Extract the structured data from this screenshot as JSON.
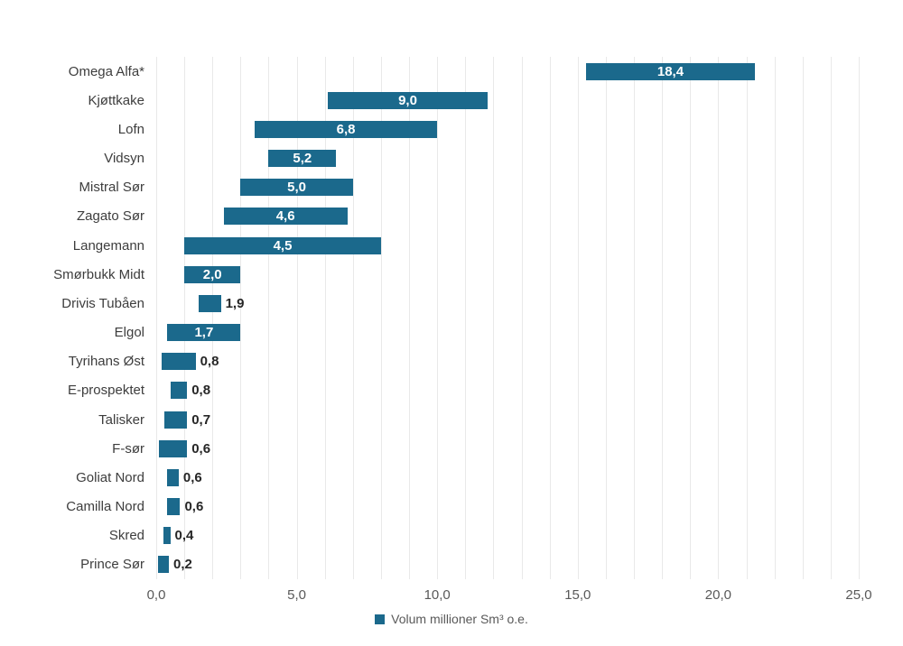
{
  "chart_data": {
    "type": "bar",
    "orientation": "horizontal-floating",
    "title": "",
    "xlabel": "",
    "ylabel": "",
    "x_axis": {
      "min": 0,
      "max": 25,
      "tick_step": 5,
      "gridline_step": 1,
      "tick_values": [
        0,
        5,
        10,
        15,
        20,
        25
      ],
      "tick_labels": [
        "0,0",
        "5,0",
        "10,0",
        "15,0",
        "20,0",
        "25,0"
      ]
    },
    "grid": "vertical-on",
    "legend_position": "bottom-center",
    "series_name": "Volum millioner Sm³ o.e.",
    "points": [
      {
        "category": "Omega Alfa*",
        "range": [
          15.3,
          21.3
        ],
        "value": 18.4,
        "label": "18,4",
        "label_inside": true
      },
      {
        "category": "Kjøttkake",
        "range": [
          6.1,
          11.8
        ],
        "value": 9.0,
        "label": "9,0",
        "label_inside": true
      },
      {
        "category": "Lofn",
        "range": [
          3.5,
          10.0
        ],
        "value": 6.8,
        "label": "6,8",
        "label_inside": true
      },
      {
        "category": "Vidsyn",
        "range": [
          4.0,
          6.4
        ],
        "value": 5.2,
        "label": "5,2",
        "label_inside": true
      },
      {
        "category": "Mistral Sør",
        "range": [
          3.0,
          7.0
        ],
        "value": 5.0,
        "label": "5,0",
        "label_inside": true
      },
      {
        "category": "Zagato Sør",
        "range": [
          2.4,
          6.8
        ],
        "value": 4.6,
        "label": "4,6",
        "label_inside": true
      },
      {
        "category": "Langemann",
        "range": [
          1.0,
          8.0
        ],
        "value": 4.5,
        "label": "4,5",
        "label_inside": true
      },
      {
        "category": "Smørbukk Midt",
        "range": [
          1.0,
          3.0
        ],
        "value": 2.0,
        "label": "2,0",
        "label_inside": true
      },
      {
        "category": "Drivis Tubåen",
        "range": [
          1.5,
          2.3
        ],
        "value": 1.9,
        "label": "1,9",
        "label_inside": false
      },
      {
        "category": "Elgol",
        "range": [
          0.4,
          3.0
        ],
        "value": 1.7,
        "label": "1,7",
        "label_inside": true
      },
      {
        "category": "Tyrihans Øst",
        "range": [
          0.2,
          1.4
        ],
        "value": 0.8,
        "label": "0,8",
        "label_inside": false
      },
      {
        "category": "E-prospektet",
        "range": [
          0.5,
          1.1
        ],
        "value": 0.8,
        "label": "0,8",
        "label_inside": false
      },
      {
        "category": "Talisker",
        "range": [
          0.3,
          1.1
        ],
        "value": 0.7,
        "label": "0,7",
        "label_inside": false
      },
      {
        "category": "F-sør",
        "range": [
          0.1,
          1.1
        ],
        "value": 0.6,
        "label": "0,6",
        "label_inside": false
      },
      {
        "category": "Goliat Nord",
        "range": [
          0.4,
          0.8
        ],
        "value": 0.6,
        "label": "0,6",
        "label_inside": false
      },
      {
        "category": "Camilla Nord",
        "range": [
          0.4,
          0.85
        ],
        "value": 0.6,
        "label": "0,6",
        "label_inside": false
      },
      {
        "category": "Skred",
        "range": [
          0.25,
          0.5
        ],
        "value": 0.4,
        "label": "0,4",
        "label_inside": false
      },
      {
        "category": "Prince Sør",
        "range": [
          0.05,
          0.45
        ],
        "value": 0.2,
        "label": "0,2",
        "label_inside": false
      }
    ]
  },
  "legend": {
    "label": "Volum millioner Sm³ o.e."
  },
  "colors": {
    "bar": "#1b698c",
    "gridline": "#e9e9e9",
    "background": "#ffffff",
    "category_text": "#3d3d3d",
    "tick_text": "#595959",
    "value_inside_text": "#ffffff",
    "value_outside_text": "#262626",
    "legend_text": "#595959"
  }
}
